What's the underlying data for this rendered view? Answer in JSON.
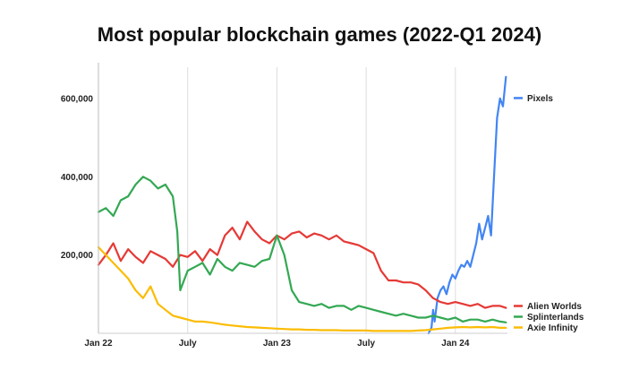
{
  "chart_data": {
    "type": "line",
    "title": "Most popular blockchain games (2022-Q1 2024)",
    "xlabel": "",
    "ylabel": "",
    "x_tick_labels": [
      "Jan 22",
      "July",
      "Jan 23",
      "July",
      "Jan 24"
    ],
    "x_tick_positions_months": [
      0,
      6,
      12,
      18,
      24
    ],
    "y_tick_labels": [
      "200,000",
      "400,000",
      "600,000"
    ],
    "y_tick_values": [
      200000,
      400000,
      600000
    ],
    "ylim": [
      0,
      680000
    ],
    "xlim_months": [
      0,
      27.5
    ],
    "grid": "vertical",
    "legend": "right, at line ends",
    "series": [
      {
        "name": "Pixels",
        "color": "#4285f4",
        "x_months": [
          22.2,
          22.4,
          22.5,
          22.6,
          22.8,
          23.0,
          23.2,
          23.4,
          23.6,
          23.8,
          24.0,
          24.2,
          24.4,
          24.6,
          24.8,
          25.0,
          25.2,
          25.4,
          25.6,
          25.8,
          26.0,
          26.2,
          26.4,
          26.6,
          26.8,
          27.0,
          27.2,
          27.4
        ],
        "values": [
          0,
          15000,
          60000,
          30000,
          90000,
          110000,
          120000,
          100000,
          130000,
          150000,
          140000,
          160000,
          175000,
          170000,
          185000,
          170000,
          200000,
          230000,
          280000,
          240000,
          270000,
          300000,
          250000,
          400000,
          550000,
          600000,
          580000,
          655000
        ]
      },
      {
        "name": "Alien Worlds",
        "color": "#e53935",
        "x_months": [
          0,
          0.5,
          1,
          1.5,
          2,
          2.5,
          3,
          3.5,
          4,
          4.5,
          5,
          5.5,
          6,
          6.5,
          7,
          7.5,
          8,
          8.5,
          9,
          9.5,
          10,
          10.5,
          11,
          11.5,
          12,
          12.5,
          13,
          13.5,
          14,
          14.5,
          15,
          15.5,
          16,
          16.5,
          17,
          17.5,
          18,
          18.5,
          19,
          19.5,
          20,
          20.5,
          21,
          21.5,
          22,
          22.5,
          23,
          23.5,
          24,
          24.5,
          25,
          25.5,
          26,
          26.5,
          27,
          27.4
        ],
        "values": [
          175000,
          200000,
          230000,
          185000,
          215000,
          195000,
          180000,
          210000,
          200000,
          190000,
          170000,
          200000,
          195000,
          210000,
          185000,
          215000,
          200000,
          250000,
          270000,
          240000,
          285000,
          260000,
          240000,
          230000,
          250000,
          240000,
          255000,
          260000,
          245000,
          255000,
          250000,
          240000,
          250000,
          235000,
          230000,
          225000,
          215000,
          205000,
          160000,
          135000,
          135000,
          130000,
          130000,
          125000,
          110000,
          90000,
          80000,
          75000,
          80000,
          75000,
          70000,
          75000,
          65000,
          70000,
          70000,
          65000
        ]
      },
      {
        "name": "Splinterlands",
        "color": "#34a853",
        "x_months": [
          0,
          0.5,
          1,
          1.5,
          2,
          2.5,
          3,
          3.5,
          4,
          4.5,
          5,
          5.3,
          5.5,
          6,
          6.5,
          7,
          7.5,
          8,
          8.5,
          9,
          9.5,
          10,
          10.5,
          11,
          11.5,
          12,
          12.5,
          13,
          13.5,
          14,
          14.5,
          15,
          15.5,
          16,
          16.5,
          17,
          17.5,
          18,
          18.5,
          19,
          19.5,
          20,
          20.5,
          21,
          21.5,
          22,
          22.5,
          23,
          23.5,
          24,
          24.5,
          25,
          25.5,
          26,
          26.5,
          27,
          27.4
        ],
        "values": [
          310000,
          320000,
          300000,
          340000,
          350000,
          380000,
          400000,
          390000,
          370000,
          380000,
          350000,
          260000,
          110000,
          160000,
          170000,
          180000,
          150000,
          190000,
          170000,
          160000,
          180000,
          175000,
          170000,
          185000,
          190000,
          250000,
          200000,
          110000,
          80000,
          75000,
          70000,
          75000,
          65000,
          70000,
          70000,
          60000,
          70000,
          65000,
          60000,
          55000,
          50000,
          45000,
          50000,
          45000,
          40000,
          40000,
          45000,
          40000,
          35000,
          40000,
          30000,
          35000,
          35000,
          30000,
          35000,
          30000,
          28000
        ]
      },
      {
        "name": "Axie Infinity",
        "color": "#fbbc04",
        "x_months": [
          0,
          0.5,
          1,
          1.5,
          2,
          2.5,
          3,
          3.5,
          4,
          4.5,
          5,
          5.5,
          6,
          6.5,
          7,
          7.5,
          8,
          8.5,
          9,
          9.5,
          10,
          10.5,
          11,
          11.5,
          12,
          12.5,
          13,
          13.5,
          14,
          14.5,
          15,
          15.5,
          16,
          16.5,
          17,
          17.5,
          18,
          18.5,
          19,
          19.5,
          20,
          20.5,
          21,
          21.5,
          22,
          22.5,
          23,
          23.5,
          24,
          24.5,
          25,
          25.5,
          26,
          26.5,
          27,
          27.4
        ],
        "values": [
          220000,
          200000,
          180000,
          160000,
          140000,
          110000,
          90000,
          120000,
          75000,
          60000,
          45000,
          40000,
          35000,
          30000,
          30000,
          28000,
          25000,
          22000,
          20000,
          18000,
          16000,
          15000,
          14000,
          13000,
          12000,
          11000,
          10000,
          10000,
          9000,
          9000,
          8000,
          8000,
          8000,
          7000,
          7000,
          7000,
          7000,
          6000,
          6000,
          6000,
          6000,
          6000,
          6000,
          7000,
          8000,
          10000,
          12000,
          14000,
          15000,
          16000,
          15000,
          16000,
          15000,
          16000,
          14000,
          14000
        ]
      }
    ]
  }
}
